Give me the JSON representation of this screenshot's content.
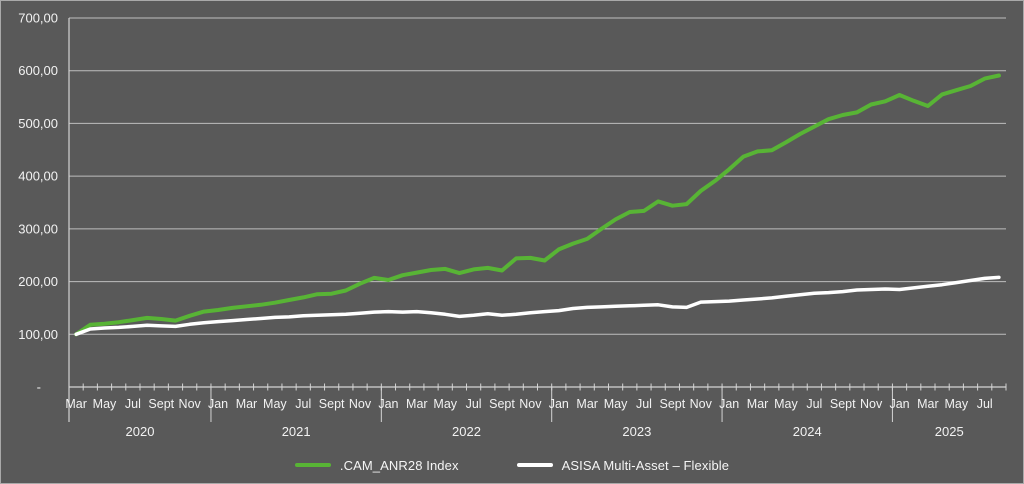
{
  "chart_data": {
    "type": "line",
    "title": "",
    "x_axis": {
      "start": "Mar 2020",
      "end": "Aug 2025",
      "frequency": "monthly",
      "month_tick_labels": [
        "Mar",
        "May",
        "Jul",
        "Sept",
        "Nov",
        "Jan",
        "Mar",
        "May",
        "Jul",
        "Sept",
        "Nov",
        "Jan",
        "Mar",
        "May",
        "Jul",
        "Sept",
        "Nov",
        "Jan",
        "Mar",
        "May",
        "Jul",
        "Sept",
        "Nov",
        "Jan",
        "Mar",
        "May",
        "Jul",
        "Sept",
        "Nov",
        "Jan",
        "Mar",
        "May",
        "Jul"
      ],
      "year_labels": [
        "2020",
        "2021",
        "2022",
        "2023",
        "2024",
        "2025"
      ]
    },
    "y_axis": {
      "tick_labels": [
        "-",
        "100,00",
        "200,00",
        "300,00",
        "400,00",
        "500,00",
        "600,00",
        "700,00"
      ],
      "min": 0,
      "max": 700,
      "step": 100
    },
    "grid": true,
    "legend_position": "bottom",
    "series": [
      {
        "name": ".CAM_ANR28 Index",
        "color": "#58b435",
        "values": [
          100,
          118,
          120,
          123,
          127,
          131,
          129,
          126,
          135,
          143,
          146,
          150,
          153,
          156,
          160,
          165,
          170,
          176,
          177,
          183,
          196,
          207,
          203,
          212,
          217,
          222,
          224,
          216,
          223,
          226,
          221,
          244,
          245,
          240,
          261,
          272,
          281,
          300,
          318,
          332,
          334,
          352,
          344,
          347,
          372,
          391,
          413,
          437,
          447,
          449,
          464,
          480,
          494,
          508,
          516,
          521,
          536,
          542,
          554,
          543,
          533,
          555,
          563,
          571,
          585,
          591
        ]
      },
      {
        "name": "ASISA Multi-Asset – Flexible",
        "color": "#ffffff",
        "values": [
          100,
          110,
          112,
          113,
          115,
          117,
          116,
          115,
          119,
          122,
          124,
          126,
          128,
          130,
          132,
          133,
          135,
          136,
          137,
          138,
          140,
          142,
          143,
          142,
          143,
          141,
          138,
          134,
          136,
          139,
          136,
          138,
          141,
          143,
          145,
          149,
          151,
          152,
          153,
          154,
          155,
          156,
          152,
          151,
          161,
          162,
          163,
          165,
          167,
          169,
          172,
          175,
          178,
          179,
          181,
          184,
          185,
          186,
          185,
          188,
          191,
          194,
          198,
          202,
          206,
          208
        ]
      }
    ]
  },
  "colors": {
    "background": "#595959",
    "gridline": "#c9c9c9",
    "axis": "#d4d4d4",
    "text": "#f2f2f2",
    "border": "#a9a9a9"
  }
}
